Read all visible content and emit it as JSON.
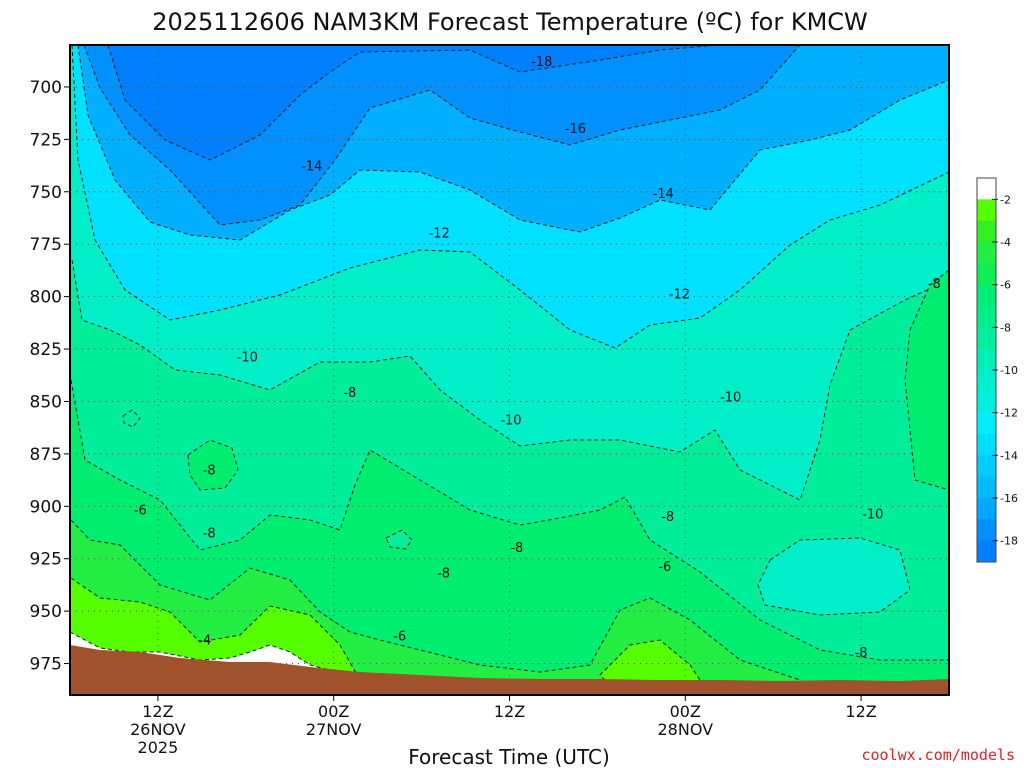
{
  "chart_data": {
    "type": "contour",
    "title": "2025112606 NAM3KM Forecast Temperature (ºC) for KMCW",
    "xlabel": "Forecast Time (UTC)",
    "ylabel": "",
    "y_ticks": [
      "700",
      "725",
      "750",
      "775",
      "800",
      "825",
      "850",
      "875",
      "900",
      "925",
      "950",
      "975"
    ],
    "y_values": [
      700,
      725,
      750,
      775,
      800,
      825,
      850,
      875,
      900,
      925,
      950,
      975
    ],
    "ylim": [
      680,
      990
    ],
    "y_inverted": true,
    "x_range_hours": [
      6,
      66
    ],
    "x_ticks": [
      {
        "hour": 12,
        "lines": [
          "12Z",
          "26NOV",
          "2025"
        ]
      },
      {
        "hour": 24,
        "lines": [
          "00Z",
          "27NOV"
        ]
      },
      {
        "hour": 36,
        "lines": [
          "12Z"
        ]
      },
      {
        "hour": 48,
        "lines": [
          "00Z",
          "28NOV"
        ]
      },
      {
        "hour": 60,
        "lines": [
          "12Z"
        ]
      }
    ],
    "grid": true,
    "colorbar": {
      "levels": [
        -2,
        -4,
        -6,
        -8,
        -10,
        -12,
        -14,
        -16,
        -18
      ],
      "labels": [
        "-2",
        "-4",
        "-6",
        "-8",
        "-10",
        "-12",
        "-14",
        "-16",
        "-18"
      ],
      "colors": {
        "above_-2": "#ffffff",
        "-2_-3": "#55ff00",
        "-3_-4": "#33ee22",
        "-4_-5": "#22ee44",
        "-5_-6": "#11ee55",
        "-6_-7": "#00ee77",
        "-7_-8": "#00ee88",
        "-8_-9": "#00eea0",
        "-9_-10": "#00eeb8",
        "-10_-11": "#00eecc",
        "-11_-12": "#00eee0",
        "-12_-13": "#00eeff",
        "-13_-14": "#00ddff",
        "-14_-15": "#00ccff",
        "-15_-16": "#00bbff",
        "-16_-17": "#00a8ff",
        "-17_-18": "#0090ff",
        "below_-18": "#0080ff"
      }
    },
    "contour_labels": [
      {
        "text": "-18",
        "hour": 38.2,
        "p": 688
      },
      {
        "text": "-16",
        "hour": 40.5,
        "p": 720
      },
      {
        "text": "-14",
        "hour": 22.5,
        "p": 738
      },
      {
        "text": "-14",
        "hour": 46.5,
        "p": 751
      },
      {
        "text": "-12",
        "hour": 31.2,
        "p": 770
      },
      {
        "text": "-12",
        "hour": 47.6,
        "p": 799
      },
      {
        "text": "-10",
        "hour": 18.1,
        "p": 829
      },
      {
        "text": "-10",
        "hour": 36.1,
        "p": 859
      },
      {
        "text": "-10",
        "hour": 51.1,
        "p": 848
      },
      {
        "text": "-10",
        "hour": 60.8,
        "p": 904
      },
      {
        "text": "-8",
        "hour": 25.1,
        "p": 846
      },
      {
        "text": "-8",
        "hour": 15.5,
        "p": 883
      },
      {
        "text": "-8",
        "hour": 15.5,
        "p": 913
      },
      {
        "text": "-8",
        "hour": 36.5,
        "p": 920
      },
      {
        "text": "-8",
        "hour": 31.5,
        "p": 932
      },
      {
        "text": "-8",
        "hour": 46.8,
        "p": 905
      },
      {
        "text": "-8",
        "hour": 65.0,
        "p": 794
      },
      {
        "text": "-8",
        "hour": 60.0,
        "p": 970
      },
      {
        "text": "-6",
        "hour": 10.8,
        "p": 902
      },
      {
        "text": "-6",
        "hour": 46.6,
        "p": 929
      },
      {
        "text": "-6",
        "hour": 28.5,
        "p": 962
      },
      {
        "text": "-4",
        "hour": 15.2,
        "p": 964
      }
    ],
    "credit": "coolwx.com/models"
  }
}
